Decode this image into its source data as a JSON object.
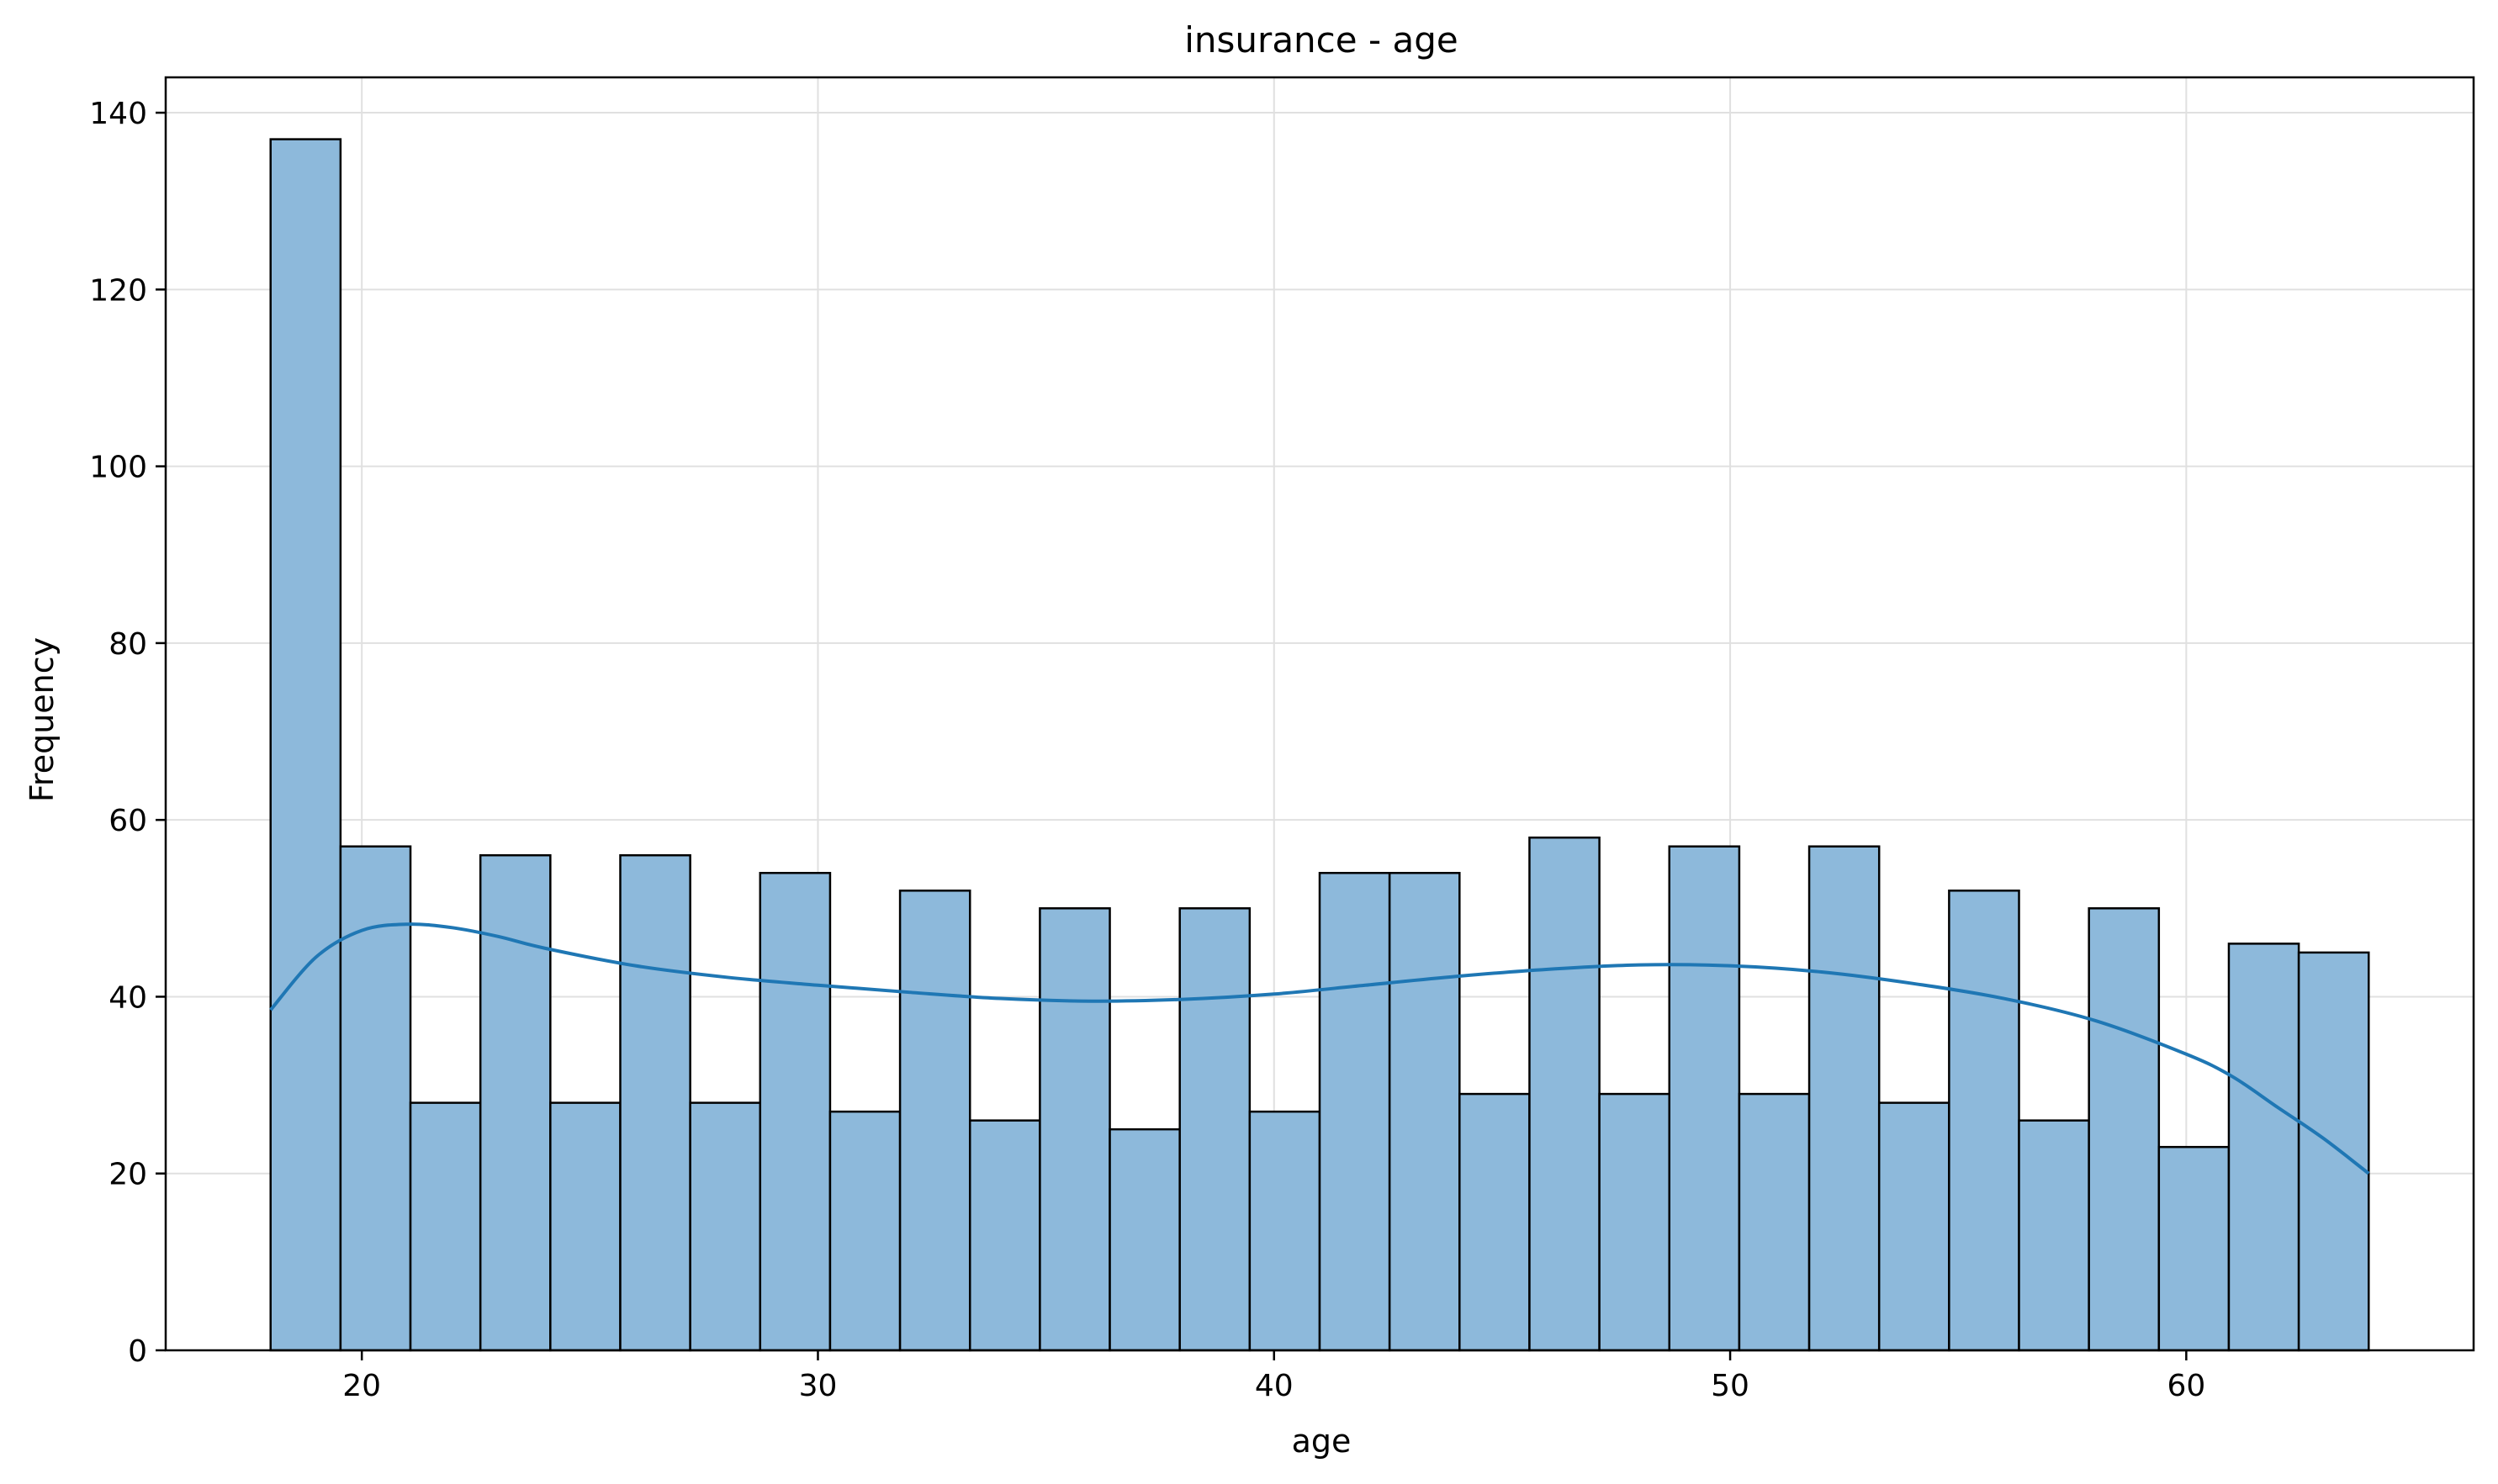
{
  "chart_data": {
    "type": "bar",
    "subtype": "histogram-with-kde",
    "title": "insurance - age",
    "xlabel": "age",
    "ylabel": "Frequency",
    "xlim": [
      15.7,
      66.3
    ],
    "ylim": [
      0,
      144
    ],
    "grid": true,
    "legend": "none",
    "bin_start": 18,
    "bin_end": 64,
    "bins": 30,
    "values": [
      137,
      57,
      28,
      56,
      28,
      56,
      28,
      54,
      27,
      52,
      26,
      50,
      25,
      50,
      27,
      54,
      54,
      29,
      58,
      29,
      57,
      29,
      57,
      28,
      52,
      26,
      50,
      23,
      46,
      45
    ],
    "x_ticks": [
      20,
      30,
      40,
      50,
      60
    ],
    "y_ticks": [
      0,
      20,
      40,
      60,
      80,
      100,
      120,
      140
    ],
    "kde": {
      "x": [
        18,
        19,
        20,
        21,
        22,
        23,
        24,
        26,
        28,
        30,
        32,
        34,
        36,
        38,
        40,
        42,
        44,
        46,
        48,
        50,
        52,
        54,
        56,
        58,
        60,
        61,
        62,
        63,
        64
      ],
      "y": [
        38.5,
        44.5,
        47.5,
        48.2,
        47.8,
        46.8,
        45.5,
        43.5,
        42.2,
        41.3,
        40.5,
        39.8,
        39.5,
        39.7,
        40.3,
        41.3,
        42.3,
        43.1,
        43.6,
        43.5,
        42.8,
        41.5,
        39.8,
        37.3,
        33.5,
        31.0,
        27.5,
        24.0,
        20.0
      ]
    },
    "colors": {
      "bar_fill": "#8db9db",
      "bar_edge": "#000000",
      "kde_line": "#1f77b4",
      "grid": "#e0e0e0"
    }
  }
}
